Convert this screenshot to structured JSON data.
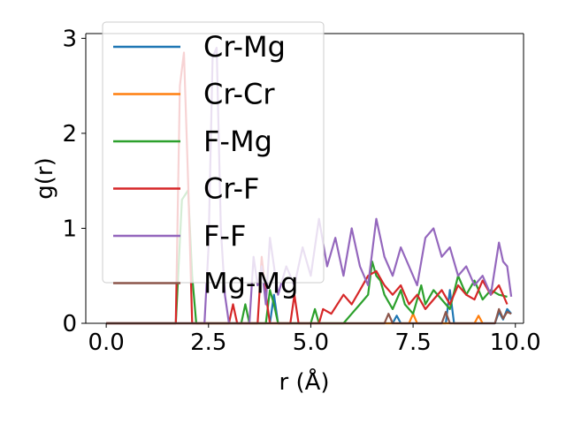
{
  "chart_data": {
    "type": "line",
    "xlabel": "r (Å)",
    "ylabel": "g(r)",
    "xlim": [
      -0.5,
      10.2
    ],
    "ylim": [
      0,
      3.05
    ],
    "xticks": [
      "0.0",
      "2.5",
      "5.0",
      "7.5",
      "10.0"
    ],
    "yticks": [
      "0",
      "1",
      "2",
      "3"
    ],
    "xtick_values": [
      0,
      2.5,
      5,
      7.5,
      10
    ],
    "ytick_values": [
      0,
      1,
      2,
      3
    ],
    "grid": false,
    "legend_position": "upper-left",
    "series": [
      {
        "name": "Cr-Mg",
        "color": "#1f77b4",
        "points": [
          [
            0,
            0
          ],
          [
            4.0,
            0
          ],
          [
            4.1,
            0.3
          ],
          [
            4.2,
            0
          ],
          [
            7.0,
            0
          ],
          [
            7.1,
            0.08
          ],
          [
            7.2,
            0
          ],
          [
            8.3,
            0
          ],
          [
            8.4,
            0.35
          ],
          [
            8.5,
            0
          ],
          [
            9.5,
            0
          ],
          [
            9.6,
            0.12
          ],
          [
            9.7,
            0.04
          ],
          [
            9.8,
            0.15
          ],
          [
            9.9,
            0.1
          ]
        ]
      },
      {
        "name": "Cr-Cr",
        "color": "#ff7f0e",
        "points": [
          [
            0,
            0
          ],
          [
            7.4,
            0
          ],
          [
            7.5,
            0.1
          ],
          [
            7.6,
            0
          ],
          [
            9.0,
            0
          ],
          [
            9.1,
            0.08
          ],
          [
            9.2,
            0
          ]
        ]
      },
      {
        "name": "F-Mg",
        "color": "#2ca02c",
        "points": [
          [
            0,
            0
          ],
          [
            1.7,
            0
          ],
          [
            1.85,
            1.3
          ],
          [
            2.0,
            1.4
          ],
          [
            2.1,
            0.5
          ],
          [
            2.2,
            0
          ],
          [
            3.3,
            0
          ],
          [
            3.4,
            0.2
          ],
          [
            3.5,
            0
          ],
          [
            3.9,
            0
          ],
          [
            4.0,
            0.35
          ],
          [
            4.1,
            0.2
          ],
          [
            4.2,
            0
          ],
          [
            5.0,
            0
          ],
          [
            5.1,
            0.15
          ],
          [
            5.2,
            0
          ],
          [
            5.8,
            0
          ],
          [
            6.0,
            0.1
          ],
          [
            6.2,
            0.2
          ],
          [
            6.4,
            0.3
          ],
          [
            6.5,
            0.65
          ],
          [
            6.6,
            0.5
          ],
          [
            6.7,
            0.45
          ],
          [
            6.8,
            0.3
          ],
          [
            7.0,
            0.15
          ],
          [
            7.2,
            0.35
          ],
          [
            7.3,
            0.2
          ],
          [
            7.5,
            0.1
          ],
          [
            7.7,
            0.4
          ],
          [
            7.8,
            0.2
          ],
          [
            8.0,
            0.35
          ],
          [
            8.2,
            0.25
          ],
          [
            8.4,
            0.15
          ],
          [
            8.6,
            0.5
          ],
          [
            8.8,
            0.3
          ],
          [
            9.0,
            0.45
          ],
          [
            9.2,
            0.25
          ],
          [
            9.4,
            0.35
          ],
          [
            9.6,
            0.3
          ],
          [
            9.8,
            0.28
          ]
        ]
      },
      {
        "name": "Cr-F",
        "color": "#d62728",
        "points": [
          [
            0,
            0
          ],
          [
            1.7,
            0
          ],
          [
            1.8,
            2.5
          ],
          [
            1.9,
            2.85
          ],
          [
            2.0,
            1.5
          ],
          [
            2.1,
            0
          ],
          [
            3.0,
            0
          ],
          [
            3.1,
            0.2
          ],
          [
            3.2,
            0
          ],
          [
            3.7,
            0
          ],
          [
            3.8,
            0.7
          ],
          [
            3.9,
            0.3
          ],
          [
            4.0,
            0
          ],
          [
            4.5,
            0
          ],
          [
            4.6,
            0.3
          ],
          [
            4.7,
            0
          ],
          [
            5.2,
            0
          ],
          [
            5.3,
            0.15
          ],
          [
            5.5,
            0.1
          ],
          [
            5.8,
            0.3
          ],
          [
            6.0,
            0.2
          ],
          [
            6.2,
            0.35
          ],
          [
            6.4,
            0.5
          ],
          [
            6.6,
            0.55
          ],
          [
            6.8,
            0.4
          ],
          [
            7.0,
            0.3
          ],
          [
            7.2,
            0.4
          ],
          [
            7.4,
            0.2
          ],
          [
            7.6,
            0.3
          ],
          [
            7.8,
            0.15
          ],
          [
            8.0,
            0.25
          ],
          [
            8.2,
            0.35
          ],
          [
            8.4,
            0.2
          ],
          [
            8.6,
            0.4
          ],
          [
            8.8,
            0.3
          ],
          [
            9.0,
            0.25
          ],
          [
            9.2,
            0.45
          ],
          [
            9.4,
            0.3
          ],
          [
            9.6,
            0.4
          ],
          [
            9.8,
            0.2
          ]
        ]
      },
      {
        "name": "F-F",
        "color": "#9467bd",
        "points": [
          [
            0,
            0
          ],
          [
            2.4,
            0
          ],
          [
            2.5,
            0.8
          ],
          [
            2.6,
            2.8
          ],
          [
            2.7,
            2.9
          ],
          [
            2.8,
            1.0
          ],
          [
            2.9,
            0.3
          ],
          [
            3.0,
            0
          ],
          [
            3.5,
            0
          ],
          [
            3.6,
            0.7
          ],
          [
            3.7,
            0.4
          ],
          [
            3.8,
            0.6
          ],
          [
            3.9,
            0.2
          ],
          [
            4.0,
            0.9
          ],
          [
            4.2,
            0.3
          ],
          [
            4.4,
            0.6
          ],
          [
            4.6,
            0.4
          ],
          [
            4.8,
            0.8
          ],
          [
            5.0,
            0.5
          ],
          [
            5.2,
            1.1
          ],
          [
            5.4,
            0.6
          ],
          [
            5.6,
            0.9
          ],
          [
            5.8,
            0.5
          ],
          [
            6.0,
            1.0
          ],
          [
            6.2,
            0.6
          ],
          [
            6.4,
            0.4
          ],
          [
            6.6,
            1.1
          ],
          [
            6.8,
            0.7
          ],
          [
            7.0,
            0.5
          ],
          [
            7.2,
            0.8
          ],
          [
            7.4,
            0.6
          ],
          [
            7.6,
            0.4
          ],
          [
            7.8,
            0.9
          ],
          [
            8.0,
            1.0
          ],
          [
            8.2,
            0.7
          ],
          [
            8.4,
            0.8
          ],
          [
            8.6,
            0.5
          ],
          [
            8.8,
            0.6
          ],
          [
            9.0,
            0.4
          ],
          [
            9.2,
            0.5
          ],
          [
            9.4,
            0.3
          ],
          [
            9.6,
            0.85
          ],
          [
            9.7,
            0.65
          ],
          [
            9.8,
            0.6
          ],
          [
            9.9,
            0.28
          ]
        ]
      },
      {
        "name": "Mg-Mg",
        "color": "#8c564b",
        "points": [
          [
            0,
            0
          ],
          [
            6.8,
            0
          ],
          [
            6.9,
            0.1
          ],
          [
            7.0,
            0
          ],
          [
            8.2,
            0
          ],
          [
            8.3,
            0.12
          ],
          [
            8.4,
            0
          ],
          [
            9.5,
            0
          ],
          [
            9.6,
            0.15
          ],
          [
            9.7,
            0.05
          ],
          [
            9.8,
            0.12
          ],
          [
            9.9,
            0.1
          ]
        ]
      }
    ]
  }
}
